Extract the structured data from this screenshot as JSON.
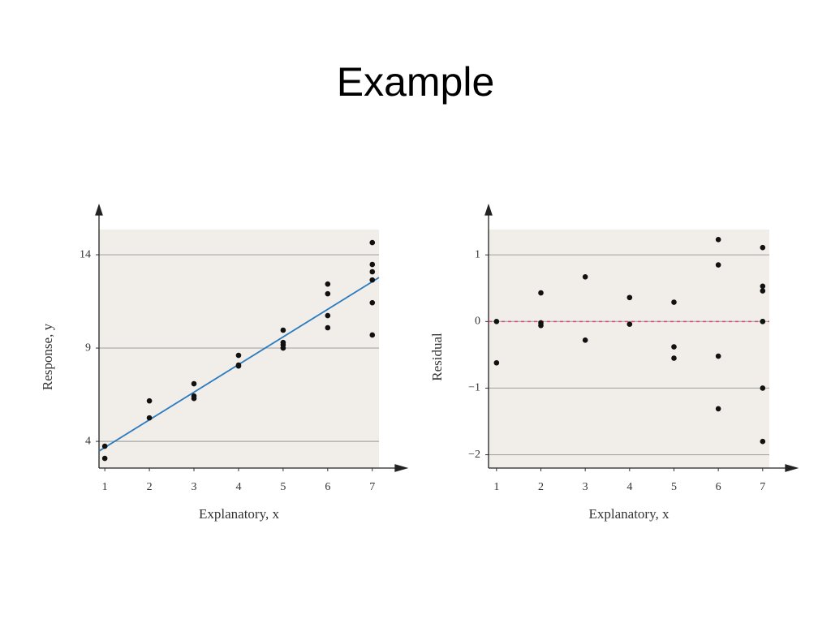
{
  "title": "Example",
  "chart_data": [
    {
      "type": "scatter",
      "xlabel": "Explanatory, x",
      "ylabel": "Response, y",
      "x": [
        1,
        1,
        2,
        2,
        3,
        3,
        3,
        4,
        4,
        4,
        5,
        5,
        5,
        5,
        6,
        6,
        6,
        6,
        7,
        7,
        7,
        7,
        7,
        7
      ],
      "values": [
        3.74,
        3.09,
        6.17,
        5.26,
        7.09,
        6.43,
        6.3,
        8.61,
        8.09,
        8.04,
        9.96,
        9.3,
        9.17,
        9.0,
        12.43,
        11.91,
        10.74,
        10.09,
        14.65,
        13.48,
        13.09,
        12.65,
        11.43,
        9.7
      ],
      "color": "#111111",
      "fit": {
        "x": [
          0.87,
          7.15
        ],
        "values": [
          3.48,
          12.78
        ],
        "color": "#2a7bc0"
      },
      "xlim": [
        0.87,
        7.15
      ],
      "ylim": [
        2.57,
        15.35
      ],
      "xticks": [
        1,
        2,
        3,
        4,
        5,
        6,
        7
      ],
      "yticks": [
        4,
        9,
        14
      ],
      "grid": true
    },
    {
      "type": "scatter",
      "xlabel": "Explanatory, x",
      "ylabel": "Residual",
      "x": [
        1,
        1,
        2,
        2,
        2,
        3,
        3,
        4,
        4,
        5,
        5,
        5,
        6,
        6,
        6,
        6,
        7,
        7,
        7,
        7,
        7,
        7,
        7
      ],
      "values": [
        0,
        -0.62,
        0.43,
        -0.02,
        -0.06,
        0.67,
        -0.28,
        0.36,
        -0.04,
        0.29,
        -0.38,
        -0.55,
        1.23,
        0.85,
        -0.52,
        -1.31,
        1.11,
        0.53,
        0.46,
        0,
        0,
        -1.0,
        -1.8
      ],
      "color": "#111111",
      "hline": {
        "value": 0,
        "color": "#e0457b",
        "style": "dashed"
      },
      "xlim": [
        0.82,
        7.15
      ],
      "ylim": [
        -2.2,
        1.38
      ],
      "xticks": [
        1,
        2,
        3,
        4,
        5,
        6,
        7
      ],
      "yticks": [
        {
          "value": -2,
          "label": "−2"
        },
        {
          "value": -1,
          "label": "−1"
        },
        0,
        1
      ],
      "grid": true
    }
  ]
}
